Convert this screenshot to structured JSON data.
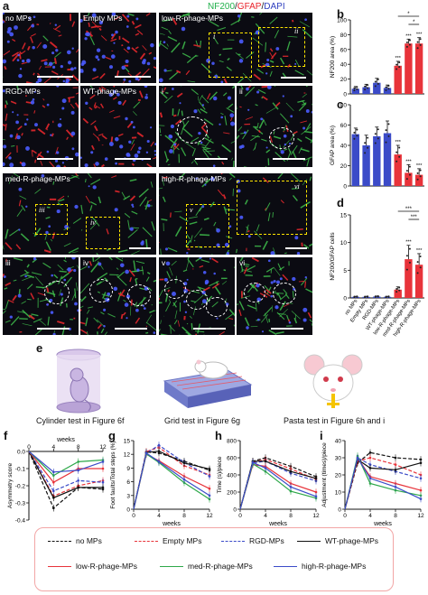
{
  "title_parts": [
    {
      "text": "NF200",
      "color": "#22b14c"
    },
    {
      "text": "/",
      "color": "#111111"
    },
    {
      "text": "GFAP",
      "color": "#e8222a"
    },
    {
      "text": "/",
      "color": "#111111"
    },
    {
      "text": "DAPI",
      "color": "#2f3fbf"
    }
  ],
  "panel_letters": {
    "a": "a",
    "b": "b",
    "c": "c",
    "d": "d",
    "e": "e",
    "f": "f",
    "g": "g",
    "h": "h",
    "i": "i"
  },
  "micro_labels": {
    "no_mps": "no MPs",
    "empty_mps": "Empty MPs",
    "low": "low-R-phage-MPs",
    "rgd": "RGD-MPs",
    "wt": "WT-phage-MPs",
    "i": "i",
    "ii": "ii",
    "med": "med-R-phage-MPs",
    "high": "high-R-phage-MPs",
    "iii": "iii",
    "iv": "iv",
    "v": "v",
    "vi": "vi"
  },
  "e_captions": {
    "cylinder": "Cylinder test in Figure 6f",
    "grid": "Grid test in Figure 6g",
    "pasta": "Pasta test in Figure 6h and i"
  },
  "group_colors": [
    "#3b4bc8",
    "#3b4bc8",
    "#3b4bc8",
    "#3b4bc8",
    "#e8333a",
    "#e8333a",
    "#e8333a"
  ],
  "chart_data": [
    {
      "panel": "b",
      "type": "bar",
      "categories": [
        "no MPs",
        "Empty MPs",
        "RGD-MPs",
        "WT-phage-MPs",
        "low-R-phage-MPs",
        "med-R-phage-MPs",
        "high-R-phage-MPs"
      ],
      "values": [
        7,
        9,
        15,
        8,
        38,
        68,
        68
      ],
      "errors": [
        3,
        4,
        6,
        4,
        6,
        6,
        8
      ],
      "ylabel": "NF200 area (%)",
      "ylim": [
        0,
        100
      ],
      "yticks": [
        "0",
        "20",
        "40",
        "60",
        "80",
        "100"
      ],
      "sig": [
        "*",
        "*"
      ],
      "stars": [
        "",
        "",
        "",
        "",
        "***",
        "***",
        "***"
      ]
    },
    {
      "panel": "c",
      "type": "bar",
      "categories": [
        "no MPs",
        "Empty MPs",
        "RGD-MPs",
        "WT-phage-MPs",
        "low-R-phage-MPs",
        "med-R-phage-MPs",
        "high-R-phage-MPs"
      ],
      "values": [
        51,
        40,
        49,
        52,
        31,
        13,
        11
      ],
      "errors": [
        6,
        10,
        9,
        12,
        9,
        8,
        6
      ],
      "ylabel": "GFAP area (%)",
      "ylim": [
        0,
        80
      ],
      "yticks": [
        "0",
        "20",
        "40",
        "60",
        "80"
      ],
      "stars": [
        "",
        "",
        "",
        "",
        "***",
        "***",
        "***"
      ]
    },
    {
      "panel": "d",
      "type": "bar",
      "categories": [
        "no MPs",
        "Empty MPs",
        "RGD-MPs",
        "WT-phage-MPs",
        "low-R-phage-MPs",
        "med-R-phage-MPs",
        "high-R-phage-MPs"
      ],
      "values": [
        0.2,
        0.2,
        0.25,
        0.2,
        1.5,
        7.0,
        6.0
      ],
      "errors": [
        0.1,
        0.1,
        0.1,
        0.1,
        0.5,
        2.5,
        2
      ],
      "ylabel": "NF200/GFAP cells",
      "ylim": [
        0,
        15
      ],
      "yticks": [
        "0",
        "5",
        "10",
        "15"
      ],
      "sig": [
        "***",
        "***"
      ],
      "stars": [
        "",
        "",
        "",
        "",
        "",
        "***",
        "***"
      ]
    },
    {
      "panel": "f",
      "type": "line",
      "x": [
        0,
        4,
        8,
        12
      ],
      "ylabel": "Asymmetry score",
      "xlabel": "weeks",
      "ylim": [
        -0.4,
        0
      ],
      "xticks": [
        "0",
        "4",
        "8",
        "12"
      ],
      "yticks": [
        "0.0",
        "-0.1",
        "-0.2",
        "-0.3",
        "-0.4"
      ],
      "series": [
        {
          "name": "no MPs",
          "values": [
            0,
            -0.33,
            -0.21,
            -0.22
          ]
        },
        {
          "name": "Empty MPs",
          "values": [
            0,
            -0.26,
            -0.2,
            -0.17
          ]
        },
        {
          "name": "RGD-MPs",
          "values": [
            0,
            -0.23,
            -0.17,
            -0.18
          ]
        },
        {
          "name": "WT-phage-MPs",
          "values": [
            0,
            -0.27,
            -0.21,
            -0.21
          ]
        },
        {
          "name": "low-R-phage-MPs",
          "values": [
            0,
            -0.18,
            -0.1,
            -0.1
          ]
        },
        {
          "name": "med-R-phage-MPs",
          "values": [
            0,
            -0.14,
            -0.06,
            -0.05
          ]
        },
        {
          "name": "high-R-phage-MPs",
          "values": [
            0,
            -0.12,
            -0.11,
            -0.06
          ]
        }
      ]
    },
    {
      "panel": "g",
      "type": "line",
      "x": [
        0,
        2,
        4,
        8,
        12
      ],
      "ylabel": "Foot faults/Total steps (%)",
      "xlabel": "weeks",
      "ylim": [
        0,
        15
      ],
      "xticks": [
        "0",
        "4",
        "8",
        "12"
      ],
      "yticks": [
        "0",
        "3",
        "6",
        "9",
        "12",
        "15"
      ],
      "series": [
        {
          "name": "no MPs",
          "values": [
            0,
            12.5,
            12.3,
            10.5,
            8.5
          ]
        },
        {
          "name": "Empty MPs",
          "values": [
            0,
            12.6,
            13.5,
            9.5,
            7.5
          ]
        },
        {
          "name": "RGD-MPs",
          "values": [
            0,
            12.2,
            14,
            10.2,
            7.2
          ]
        },
        {
          "name": "WT-phage-MPs",
          "values": [
            0,
            12.4,
            12.7,
            10.1,
            8.8
          ]
        },
        {
          "name": "low-R-phage-MPs",
          "values": [
            0,
            12.0,
            10.6,
            7.2,
            4.5
          ]
        },
        {
          "name": "med-R-phage-MPs",
          "values": [
            0,
            12.1,
            10.2,
            5.8,
            2.2
          ]
        },
        {
          "name": "high-R-phage-MPs",
          "values": [
            0,
            12.3,
            10.4,
            6.5,
            3.0
          ]
        }
      ]
    },
    {
      "panel": "h",
      "type": "line",
      "x": [
        0,
        2,
        4,
        8,
        12
      ],
      "ylabel": "Time (s)/piece",
      "xlabel": "weeks",
      "ylim": [
        0,
        800
      ],
      "xticks": [
        "0",
        "4",
        "8",
        "12"
      ],
      "yticks": [
        "0",
        "200",
        "400",
        "600",
        "800"
      ],
      "series": [
        {
          "name": "no MPs",
          "values": [
            0,
            560,
            600,
            500,
            380
          ]
        },
        {
          "name": "Empty MPs",
          "values": [
            0,
            550,
            580,
            470,
            350
          ]
        },
        {
          "name": "RGD-MPs",
          "values": [
            0,
            540,
            560,
            420,
            330
          ]
        },
        {
          "name": "WT-phage-MPs",
          "values": [
            0,
            560,
            560,
            440,
            360
          ]
        },
        {
          "name": "low-R-phage-MPs",
          "values": [
            0,
            520,
            500,
            300,
            200
          ]
        },
        {
          "name": "med-R-phage-MPs",
          "values": [
            0,
            530,
            440,
            210,
            130
          ]
        },
        {
          "name": "high-R-phage-MPs",
          "values": [
            0,
            545,
            480,
            260,
            150
          ]
        }
      ]
    },
    {
      "panel": "i",
      "type": "line",
      "x": [
        0,
        2,
        4,
        8,
        12
      ],
      "ylabel": "Adjustment (times)/piece",
      "xlabel": "weeks",
      "ylim": [
        0,
        40
      ],
      "xticks": [
        "0",
        "4",
        "8",
        "12"
      ],
      "yticks": [
        "0",
        "10",
        "20",
        "30",
        "40"
      ],
      "series": [
        {
          "name": "no MPs",
          "values": [
            0,
            27,
            33,
            30,
            29
          ]
        },
        {
          "name": "Empty MPs",
          "values": [
            0,
            28,
            30,
            26,
            20
          ]
        },
        {
          "name": "RGD-MPs",
          "values": [
            0,
            30,
            26,
            22,
            18
          ]
        },
        {
          "name": "WT-phage-MPs",
          "values": [
            0,
            29,
            24,
            23,
            27
          ]
        },
        {
          "name": "low-R-phage-MPs",
          "values": [
            0,
            30,
            19,
            15,
            11
          ]
        },
        {
          "name": "med-R-phage-MPs",
          "values": [
            0,
            31,
            15,
            11,
            8
          ]
        },
        {
          "name": "high-R-phage-MPs",
          "values": [
            0,
            30,
            18,
            13,
            6
          ]
        }
      ]
    }
  ],
  "series_styles": [
    {
      "name": "no MPs",
      "color": "#111111",
      "dash": "4,2"
    },
    {
      "name": "Empty MPs",
      "color": "#e8333a",
      "dash": "4,2"
    },
    {
      "name": "RGD-MPs",
      "color": "#3b4bc8",
      "dash": "4,2"
    },
    {
      "name": "WT-phage-MPs",
      "color": "#111111",
      "dash": ""
    },
    {
      "name": "low-R-phage-MPs",
      "color": "#e8333a",
      "dash": ""
    },
    {
      "name": "med-R-phage-MPs",
      "color": "#2ea84a",
      "dash": ""
    },
    {
      "name": "high-R-phage-MPs",
      "color": "#3b4bc8",
      "dash": ""
    }
  ]
}
